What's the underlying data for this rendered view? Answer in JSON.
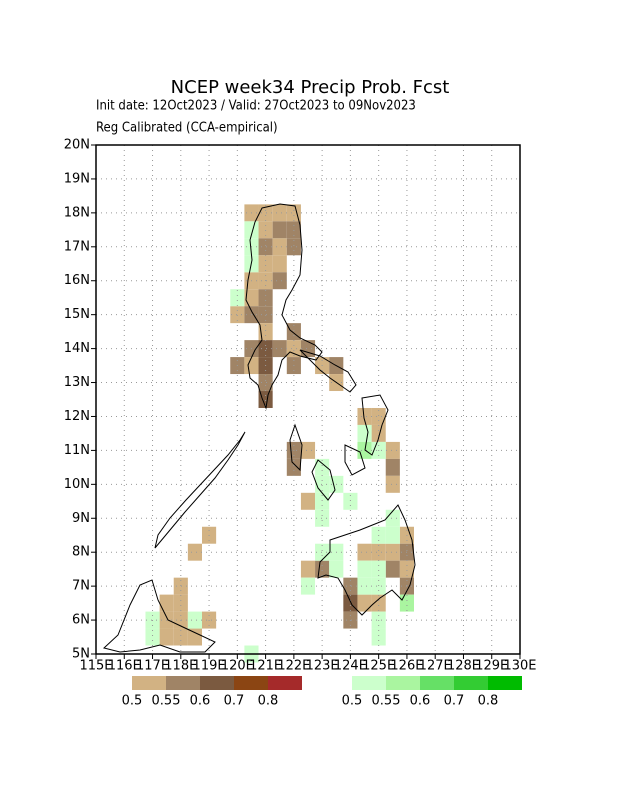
{
  "chart_data": {
    "type": "grid-map",
    "title": "NCEP week34 Precip Prob. Fcst",
    "subtitle": "Init date: 12Oct2023 / Valid: 27Oct2023 to 09Nov2023",
    "subtitle2": "Reg Calibrated (CCA-empirical)",
    "xlim": [
      115,
      130
    ],
    "ylim": [
      5,
      20
    ],
    "cell_size": 0.5,
    "grid": true,
    "xticks": [
      {
        "value": 115,
        "label": "115E"
      },
      {
        "value": 116,
        "label": "116E"
      },
      {
        "value": 117,
        "label": "117E"
      },
      {
        "value": 118,
        "label": "118E"
      },
      {
        "value": 119,
        "label": "119E"
      },
      {
        "value": 120,
        "label": "120E"
      },
      {
        "value": 121,
        "label": "121E"
      },
      {
        "value": 122,
        "label": "122E"
      },
      {
        "value": 123,
        "label": "123E"
      },
      {
        "value": 124,
        "label": "124E"
      },
      {
        "value": 125,
        "label": "125E"
      },
      {
        "value": 126,
        "label": "126E"
      },
      {
        "value": 127,
        "label": "127E"
      },
      {
        "value": 128,
        "label": "128E"
      },
      {
        "value": 129,
        "label": "129E"
      },
      {
        "value": 130,
        "label": "130E"
      }
    ],
    "yticks": [
      {
        "value": 5,
        "label": "5N"
      },
      {
        "value": 6,
        "label": "6N"
      },
      {
        "value": 7,
        "label": "7N"
      },
      {
        "value": 8,
        "label": "8N"
      },
      {
        "value": 9,
        "label": "9N"
      },
      {
        "value": 10,
        "label": "10N"
      },
      {
        "value": 11,
        "label": "11N"
      },
      {
        "value": 12,
        "label": "12N"
      },
      {
        "value": 13,
        "label": "13N"
      },
      {
        "value": 14,
        "label": "14N"
      },
      {
        "value": 15,
        "label": "15N"
      },
      {
        "value": 16,
        "label": "16N"
      },
      {
        "value": 17,
        "label": "17N"
      },
      {
        "value": 18,
        "label": "18N"
      },
      {
        "value": 19,
        "label": "19N"
      },
      {
        "value": 20,
        "label": "20N"
      }
    ],
    "levels": [
      0.5,
      0.55,
      0.6,
      0.7,
      0.8
    ],
    "dry_colors": [
      "#d2b283",
      "#a08466",
      "#7b5a40",
      "#8b4513",
      "#a52a2a"
    ],
    "wet_colors": [
      "#ccffcc",
      "#aaf5a0",
      "#66e066",
      "#33cc33",
      "#00bb00"
    ],
    "dry_cells": [
      [
        120.5,
        18,
        0.52
      ],
      [
        121,
        18,
        0.52
      ],
      [
        121.5,
        18,
        0.52
      ],
      [
        122,
        18,
        0.52
      ],
      [
        121,
        17.5,
        0.52
      ],
      [
        121.5,
        17.5,
        0.57
      ],
      [
        122,
        17.5,
        0.57
      ],
      [
        121,
        17,
        0.57
      ],
      [
        121.5,
        17,
        0.52
      ],
      [
        122,
        17,
        0.57
      ],
      [
        121,
        16.5,
        0.52
      ],
      [
        121.5,
        16.5,
        0.52
      ],
      [
        120.5,
        16,
        0.52
      ],
      [
        121,
        16,
        0.52
      ],
      [
        121.5,
        16,
        0.57
      ],
      [
        120.5,
        15.5,
        0.52
      ],
      [
        121,
        15.5,
        0.57
      ],
      [
        120,
        15,
        0.52
      ],
      [
        120.5,
        15,
        0.57
      ],
      [
        121,
        15,
        0.57
      ],
      [
        121,
        14.5,
        0.52
      ],
      [
        122,
        14.5,
        0.57
      ],
      [
        120.5,
        14,
        0.57
      ],
      [
        121,
        14,
        0.65
      ],
      [
        121.5,
        14,
        0.57
      ],
      [
        122,
        14,
        0.52
      ],
      [
        122.5,
        14,
        0.57
      ],
      [
        120,
        13.5,
        0.57
      ],
      [
        120.5,
        13.5,
        0.52
      ],
      [
        121,
        13.5,
        0.65
      ],
      [
        122,
        13.5,
        0.57
      ],
      [
        123,
        13.5,
        0.52
      ],
      [
        123.5,
        13.5,
        0.57
      ],
      [
        121,
        13,
        0.57
      ],
      [
        123.5,
        13,
        0.52
      ],
      [
        121,
        12.5,
        0.65
      ],
      [
        124.5,
        12,
        0.52
      ],
      [
        125,
        12,
        0.52
      ],
      [
        125,
        11.5,
        0.52
      ],
      [
        122,
        11,
        0.57
      ],
      [
        122.5,
        11,
        0.52
      ],
      [
        125.5,
        11,
        0.52
      ],
      [
        122,
        10.5,
        0.57
      ],
      [
        125.5,
        10.5,
        0.57
      ],
      [
        125.5,
        10,
        0.52
      ],
      [
        122.5,
        9.5,
        0.52
      ],
      [
        119,
        8.5,
        0.52
      ],
      [
        126,
        8.5,
        0.52
      ],
      [
        118.5,
        8,
        0.52
      ],
      [
        124.5,
        8,
        0.52
      ],
      [
        125,
        8,
        0.52
      ],
      [
        125.5,
        8,
        0.52
      ],
      [
        126,
        8,
        0.57
      ],
      [
        122.5,
        7.5,
        0.52
      ],
      [
        123,
        7.5,
        0.57
      ],
      [
        125.5,
        7.5,
        0.57
      ],
      [
        126,
        7.5,
        0.52
      ],
      [
        118,
        7,
        0.52
      ],
      [
        124,
        7,
        0.57
      ],
      [
        126,
        7,
        0.57
      ],
      [
        117.5,
        6.5,
        0.52
      ],
      [
        118,
        6.5,
        0.52
      ],
      [
        124,
        6.5,
        0.65
      ],
      [
        124.5,
        6.5,
        0.52
      ],
      [
        125,
        6.5,
        0.52
      ],
      [
        117.5,
        6,
        0.52
      ],
      [
        118,
        6,
        0.52
      ],
      [
        119,
        6,
        0.52
      ],
      [
        124,
        6,
        0.57
      ],
      [
        117.5,
        5.5,
        0.52
      ],
      [
        118,
        5.5,
        0.52
      ],
      [
        118.5,
        5.5,
        0.52
      ]
    ],
    "wet_cells": [
      [
        120.5,
        17.5,
        0.52
      ],
      [
        120.5,
        17,
        0.52
      ],
      [
        120.5,
        16.5,
        0.52
      ],
      [
        120,
        15.5,
        0.52
      ],
      [
        124.5,
        11.5,
        0.52
      ],
      [
        124.5,
        11,
        0.57
      ],
      [
        125,
        11,
        0.52
      ],
      [
        123,
        10.5,
        0.52
      ],
      [
        123,
        10,
        0.52
      ],
      [
        123.5,
        10,
        0.52
      ],
      [
        123,
        9.5,
        0.52
      ],
      [
        124,
        9.5,
        0.52
      ],
      [
        123,
        9,
        0.52
      ],
      [
        125.5,
        9,
        0.52
      ],
      [
        125,
        8.5,
        0.52
      ],
      [
        125.5,
        8.5,
        0.52
      ],
      [
        123,
        8,
        0.52
      ],
      [
        123.5,
        8,
        0.52
      ],
      [
        123.5,
        7.5,
        0.52
      ],
      [
        124.5,
        7.5,
        0.52
      ],
      [
        125,
        7.5,
        0.52
      ],
      [
        122.5,
        7,
        0.52
      ],
      [
        124.5,
        7,
        0.52
      ],
      [
        125,
        7,
        0.52
      ],
      [
        126,
        6.5,
        0.57
      ],
      [
        117,
        6,
        0.52
      ],
      [
        118.5,
        6,
        0.52
      ],
      [
        125,
        6,
        0.52
      ],
      [
        117,
        5.5,
        0.52
      ],
      [
        125,
        5.5,
        0.52
      ],
      [
        120.5,
        5,
        0.52
      ]
    ]
  }
}
